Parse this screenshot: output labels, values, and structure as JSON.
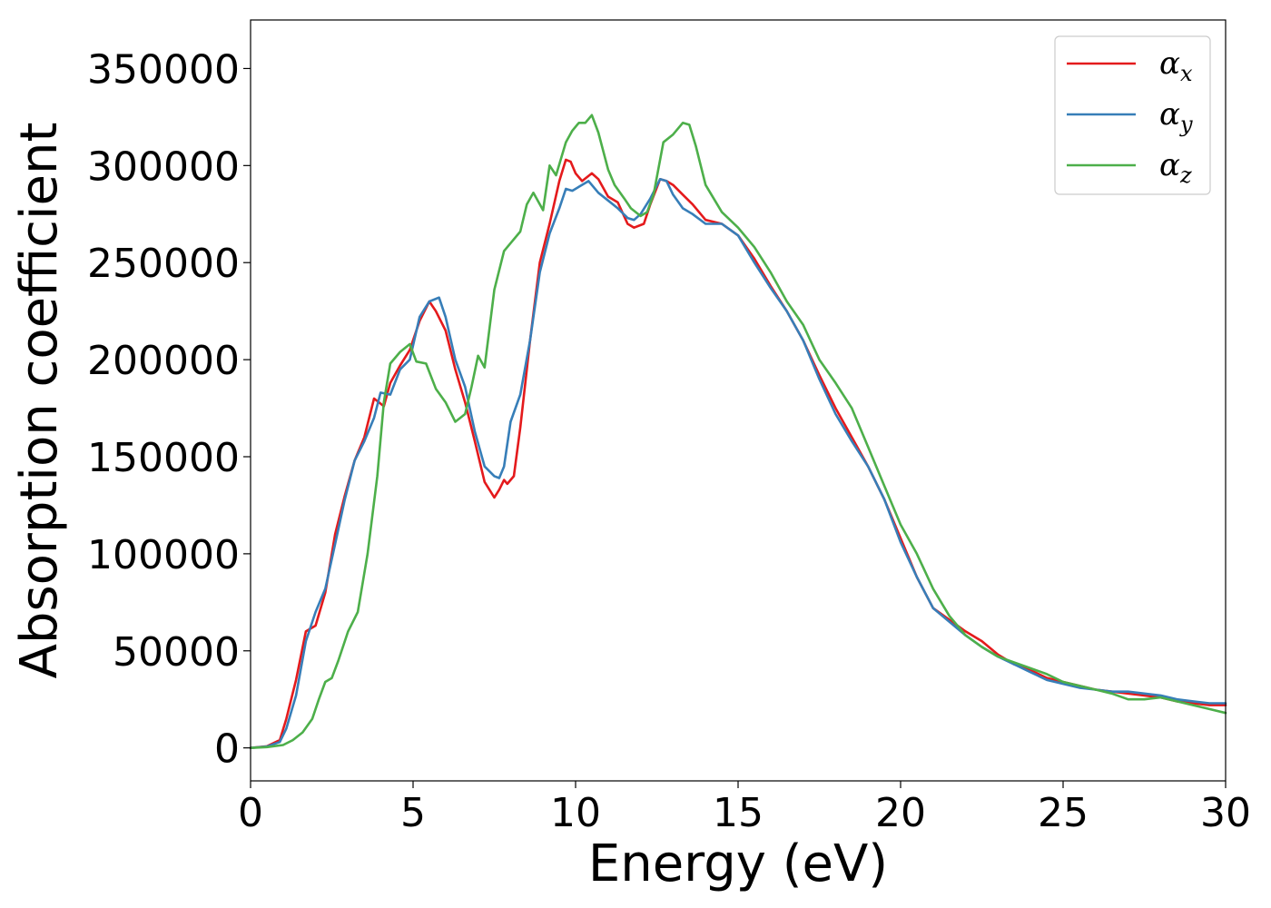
{
  "chart_data": {
    "type": "line",
    "title": "",
    "xlabel": "Energy (eV)",
    "ylabel": "Absorption coefficient",
    "xlim": [
      0,
      30
    ],
    "ylim": [
      -17000,
      375000
    ],
    "xticks": [
      0,
      5,
      10,
      15,
      20,
      25,
      30
    ],
    "yticks": [
      0,
      50000,
      100000,
      150000,
      200000,
      250000,
      300000,
      350000
    ],
    "xtick_labels": [
      "0",
      "5",
      "10",
      "15",
      "20",
      "25",
      "30"
    ],
    "ytick_labels": [
      "0",
      "50000",
      "100000",
      "150000",
      "200000",
      "250000",
      "300000",
      "350000"
    ],
    "grid": false,
    "legend_position": "top-right",
    "series": [
      {
        "name": "α_x",
        "symbol": "α",
        "sub": "x",
        "color": "#e41a1c",
        "x": [
          0,
          0.5,
          0.9,
          1.1,
          1.4,
          1.7,
          2.0,
          2.3,
          2.6,
          2.9,
          3.2,
          3.5,
          3.8,
          4.1,
          4.3,
          4.6,
          4.9,
          5.2,
          5.5,
          5.7,
          6.0,
          6.3,
          6.6,
          6.9,
          7.2,
          7.5,
          7.65,
          7.8,
          7.9,
          8.1,
          8.3,
          8.6,
          8.9,
          9.2,
          9.5,
          9.7,
          9.85,
          10.0,
          10.2,
          10.5,
          10.7,
          11.0,
          11.3,
          11.6,
          11.8,
          12.1,
          12.3,
          12.6,
          12.8,
          13.0,
          13.3,
          13.6,
          14.0,
          14.5,
          15.0,
          15.5,
          16.0,
          16.5,
          17.0,
          17.5,
          18.0,
          18.5,
          19.0,
          19.5,
          20.0,
          20.5,
          21.0,
          21.5,
          22.0,
          22.5,
          23.0,
          23.5,
          24.0,
          24.5,
          25.0,
          25.5,
          26.0,
          26.5,
          27.0,
          27.5,
          28.0,
          28.5,
          29.0,
          29.5,
          30.0
        ],
        "values": [
          0,
          800,
          4000,
          15000,
          35000,
          60000,
          63000,
          80000,
          110000,
          130000,
          148000,
          160000,
          180000,
          176000,
          188000,
          197000,
          205000,
          220000,
          230000,
          225000,
          215000,
          195000,
          178000,
          158000,
          137000,
          129000,
          133000,
          138000,
          136000,
          140000,
          165000,
          210000,
          250000,
          270000,
          292000,
          303000,
          302000,
          296000,
          292000,
          296000,
          293000,
          284000,
          281000,
          270000,
          268000,
          270000,
          280000,
          293000,
          292000,
          290000,
          285000,
          280000,
          272000,
          270000,
          264000,
          252000,
          238000,
          225000,
          210000,
          192000,
          175000,
          160000,
          145000,
          128000,
          108000,
          88000,
          72000,
          66000,
          60000,
          55000,
          48000,
          43000,
          40000,
          36000,
          34000,
          32000,
          30000,
          29000,
          28000,
          27000,
          26000,
          24000,
          23000,
          22000,
          22000
        ]
      },
      {
        "name": "α_y",
        "symbol": "α",
        "sub": "y",
        "color": "#377eb8",
        "x": [
          0,
          0.5,
          0.9,
          1.1,
          1.4,
          1.7,
          2.0,
          2.3,
          2.6,
          2.9,
          3.2,
          3.5,
          3.8,
          4.0,
          4.3,
          4.6,
          4.9,
          5.2,
          5.5,
          5.8,
          6.0,
          6.3,
          6.6,
          6.9,
          7.2,
          7.5,
          7.65,
          7.8,
          8.0,
          8.3,
          8.6,
          8.9,
          9.2,
          9.5,
          9.7,
          9.9,
          10.1,
          10.4,
          10.7,
          11.0,
          11.3,
          11.6,
          11.8,
          12.0,
          12.3,
          12.6,
          12.8,
          13.0,
          13.3,
          13.6,
          14.0,
          14.5,
          15.0,
          15.5,
          16.0,
          16.5,
          17.0,
          17.5,
          18.0,
          18.5,
          19.0,
          19.5,
          20.0,
          20.5,
          21.0,
          21.5,
          22.0,
          22.5,
          23.0,
          23.5,
          24.0,
          24.5,
          25.0,
          25.5,
          26.0,
          26.5,
          27.0,
          27.5,
          28.0,
          28.5,
          29.0,
          29.5,
          30.0
        ],
        "values": [
          0,
          700,
          3000,
          10000,
          27000,
          55000,
          70000,
          82000,
          105000,
          128000,
          148000,
          158000,
          170000,
          183000,
          182000,
          195000,
          200000,
          222000,
          230000,
          232000,
          222000,
          200000,
          186000,
          163000,
          145000,
          140000,
          139000,
          145000,
          168000,
          182000,
          210000,
          245000,
          265000,
          278000,
          288000,
          287000,
          289000,
          292000,
          286000,
          282000,
          278000,
          273000,
          272000,
          275000,
          283000,
          293000,
          292000,
          285000,
          278000,
          275000,
          270000,
          270000,
          264000,
          250000,
          237000,
          225000,
          210000,
          190000,
          172000,
          158000,
          145000,
          128000,
          106000,
          88000,
          72000,
          65000,
          58000,
          52000,
          47000,
          43000,
          39000,
          35000,
          33000,
          31000,
          30000,
          29000,
          29000,
          28000,
          27000,
          25000,
          24000,
          23000,
          23000
        ]
      },
      {
        "name": "α_z",
        "symbol": "α",
        "sub": "z",
        "color": "#4daf4a",
        "x": [
          0,
          0.5,
          1.0,
          1.3,
          1.6,
          1.9,
          2.1,
          2.3,
          2.5,
          2.7,
          3.0,
          3.3,
          3.6,
          3.9,
          4.1,
          4.3,
          4.6,
          4.9,
          5.1,
          5.4,
          5.7,
          6.0,
          6.3,
          6.6,
          6.8,
          7.0,
          7.2,
          7.5,
          7.8,
          8.0,
          8.3,
          8.5,
          8.7,
          9.0,
          9.2,
          9.4,
          9.7,
          9.9,
          10.1,
          10.3,
          10.5,
          10.7,
          11.0,
          11.2,
          11.5,
          11.7,
          12.0,
          12.2,
          12.4,
          12.7,
          13.0,
          13.3,
          13.5,
          13.7,
          14.0,
          14.5,
          15.0,
          15.5,
          16.0,
          16.5,
          17.0,
          17.5,
          18.0,
          18.5,
          19.0,
          19.5,
          20.0,
          20.5,
          21.0,
          21.5,
          22.0,
          22.5,
          23.0,
          23.5,
          24.0,
          24.5,
          25.0,
          25.5,
          26.0,
          26.5,
          27.0,
          27.5,
          28.0,
          28.5,
          29.0,
          29.5,
          30.0
        ],
        "values": [
          0,
          400,
          1500,
          4000,
          8000,
          15000,
          25000,
          34000,
          36000,
          45000,
          60000,
          70000,
          100000,
          140000,
          178000,
          198000,
          204000,
          208000,
          199000,
          198000,
          185000,
          178000,
          168000,
          172000,
          186000,
          202000,
          196000,
          236000,
          256000,
          260000,
          266000,
          280000,
          286000,
          277000,
          300000,
          295000,
          312000,
          318000,
          322000,
          322000,
          326000,
          317000,
          298000,
          290000,
          283000,
          278000,
          274000,
          276000,
          285000,
          312000,
          316000,
          322000,
          321000,
          310000,
          290000,
          276000,
          268000,
          258000,
          245000,
          230000,
          218000,
          200000,
          188000,
          175000,
          155000,
          135000,
          115000,
          100000,
          82000,
          68000,
          58000,
          52000,
          47000,
          44000,
          41000,
          38000,
          34000,
          32000,
          30000,
          28000,
          25000,
          25000,
          26000,
          24000,
          22000,
          20000,
          18000
        ]
      }
    ]
  }
}
